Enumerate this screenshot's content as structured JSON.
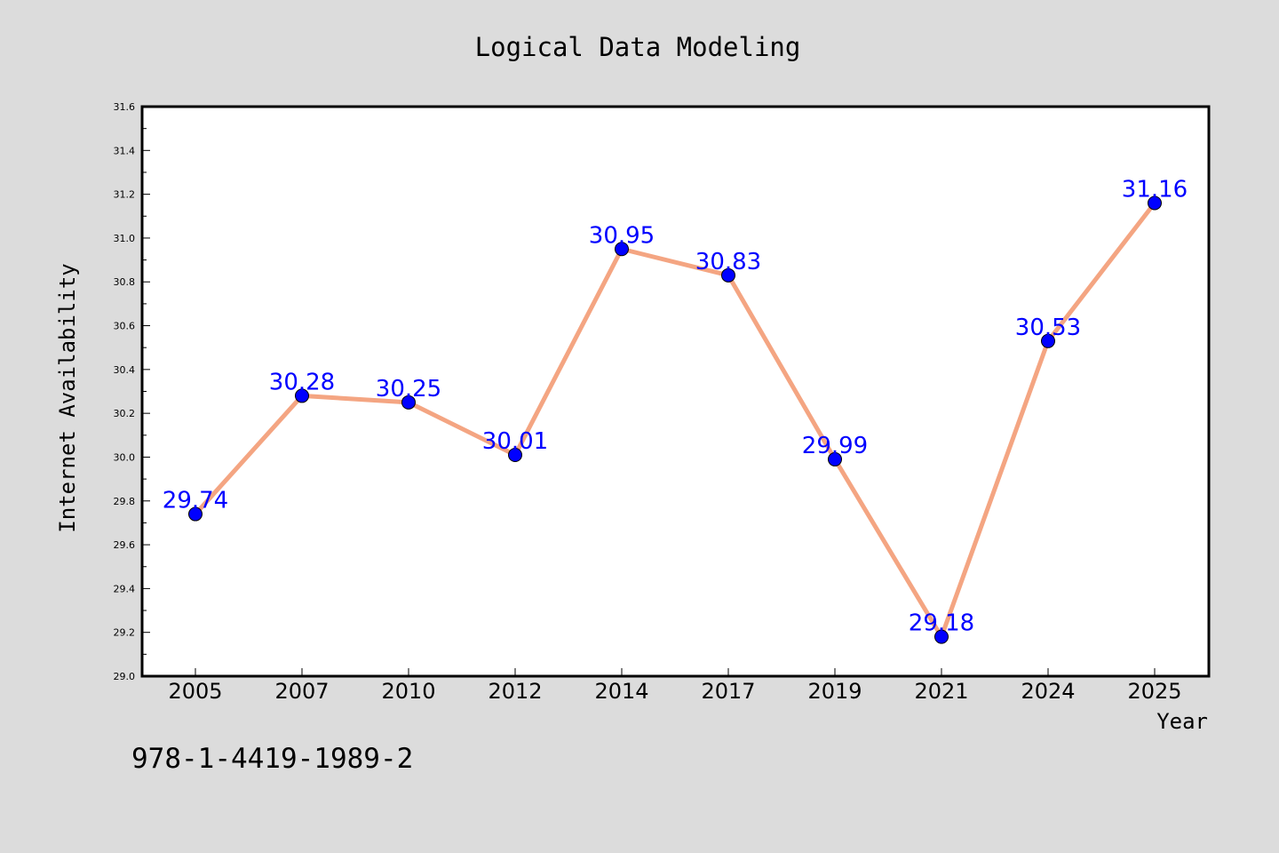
{
  "figure": {
    "background_color": "#dcdcdc",
    "plot_background_color": "#ffffff",
    "isbn_text": "978-1-4419-1989-2"
  },
  "chart_data": {
    "type": "line",
    "title": "Logical Data Modeling",
    "xlabel": "Year",
    "ylabel": "Internet Availability",
    "categories": [
      "2005",
      "2007",
      "2010",
      "2012",
      "2014",
      "2017",
      "2019",
      "2021",
      "2024",
      "2025"
    ],
    "values": [
      29.74,
      30.28,
      30.25,
      30.01,
      30.95,
      30.83,
      29.99,
      29.18,
      30.53,
      31.16
    ],
    "value_labels": [
      "29.74",
      "30.28",
      "30.25",
      "30.01",
      "30.95",
      "30.83",
      "29.99",
      "29.18",
      "30.53",
      "31.16"
    ],
    "ylim": [
      29.0,
      31.6
    ],
    "yticks": [
      "29.0",
      "29.2",
      "29.4",
      "29.6",
      "29.8",
      "30.0",
      "30.2",
      "30.4",
      "30.6",
      "30.8",
      "31.0",
      "31.2",
      "31.4",
      "31.6"
    ],
    "grid": false,
    "line_color": "#f4a582",
    "marker_color": "#0000ff",
    "label_color": "#0000ff"
  }
}
